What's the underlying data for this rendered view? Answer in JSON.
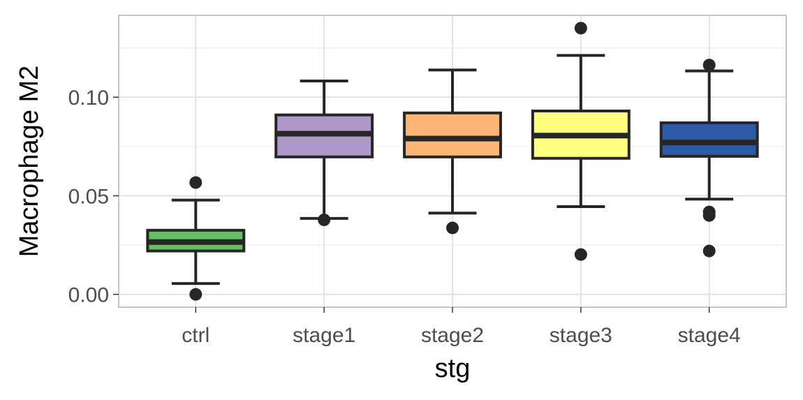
{
  "chart_data": {
    "type": "boxplot",
    "xlabel": "stg",
    "ylabel": "Macrophage M2",
    "ylim": [
      -0.0065,
      0.1415
    ],
    "yticks": [
      0.0,
      0.05,
      0.1
    ],
    "ytick_labels": [
      "0.00",
      "0.05",
      "0.10"
    ],
    "y_minor_ticks": [
      0.025,
      0.075,
      0.125
    ],
    "grid": true,
    "legend": "none",
    "categories": [
      "ctrl",
      "stage1",
      "stage2",
      "stage3",
      "stage4"
    ],
    "boxes": [
      {
        "group": "ctrl",
        "color": "#66BD63",
        "whisker_low": 0.0055,
        "q1": 0.022,
        "median": 0.0265,
        "q3": 0.0325,
        "whisker_high": 0.0478,
        "outliers": [
          0.0567,
          0.0
        ]
      },
      {
        "group": "stage1",
        "color": "#AE98C9",
        "whisker_low": 0.0385,
        "q1": 0.0697,
        "median": 0.0815,
        "q3": 0.091,
        "whisker_high": 0.1082,
        "outliers": [
          0.0378
        ]
      },
      {
        "group": "stage2",
        "color": "#FBB675",
        "whisker_low": 0.0412,
        "q1": 0.0697,
        "median": 0.079,
        "q3": 0.092,
        "whisker_high": 0.1138,
        "outliers": [
          0.0337
        ]
      },
      {
        "group": "stage3",
        "color": "#FFFF80",
        "whisker_low": 0.0445,
        "q1": 0.069,
        "median": 0.0805,
        "q3": 0.093,
        "whisker_high": 0.1212,
        "outliers": [
          0.135,
          0.0202
        ]
      },
      {
        "group": "stage4",
        "color": "#2B5AA6",
        "whisker_low": 0.0483,
        "q1": 0.07,
        "median": 0.077,
        "q3": 0.087,
        "whisker_high": 0.1133,
        "outliers": [
          0.1163,
          0.0418,
          0.04,
          0.022
        ]
      }
    ]
  }
}
